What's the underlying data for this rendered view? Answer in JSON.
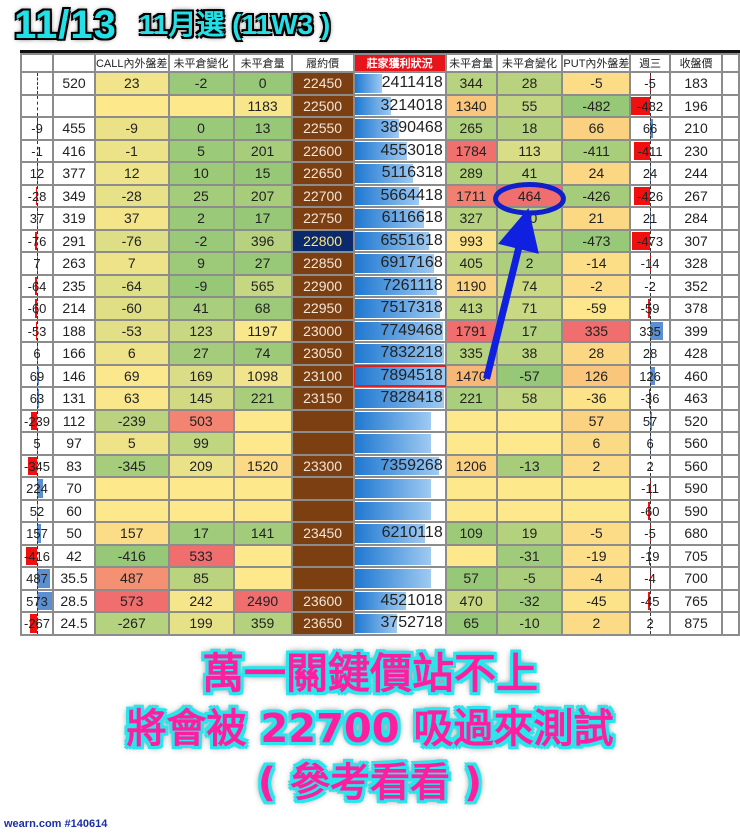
{
  "overlay": {
    "date": "11/13",
    "series": "11月選 (11W3 )",
    "caption_line1": "萬一關鍵價站不上",
    "caption_line2": "將會被 22700 吸過來測試",
    "caption_line3": "( 參考看看 )",
    "watermark": "wearn.com #140614",
    "ellipse_color": "#1020c8",
    "arrow_color": "#1020e0",
    "annotated_cell": "464"
  },
  "table": {
    "headers": [
      "",
      "",
      "CALL內外盤差",
      "未平倉變化",
      "未平倉量",
      "履約價",
      "莊家獲利狀況",
      "未平倉量",
      "未平倉變化",
      "PUT內外盤差",
      "週三",
      "收盤價"
    ],
    "atm_strike": "22800",
    "highlight_strike": "23100",
    "colors": {
      "strike": "#7b3f12",
      "atm": "#0b2a6b",
      "negative_bar": "#f01010",
      "positive_bar": "#5b8fd0",
      "bank_bar": "#1f78d1"
    },
    "rows": [
      [
        "",
        "520",
        "23",
        "-2",
        "0",
        "22450",
        "2411418",
        "344",
        "28",
        "-5",
        "-5",
        "183"
      ],
      [
        "",
        "",
        "",
        "",
        "1183",
        "22500",
        "3214018",
        "1340",
        "55",
        "-482",
        "-482",
        "196"
      ],
      [
        "-9",
        "455",
        "-9",
        "0",
        "13",
        "22550",
        "3890468",
        "265",
        "18",
        "66",
        "66",
        "210"
      ],
      [
        "-1",
        "416",
        "-1",
        "5",
        "201",
        "22600",
        "4553018",
        "1784",
        "113",
        "-411",
        "-411",
        "230"
      ],
      [
        "12",
        "377",
        "12",
        "10",
        "15",
        "22650",
        "5116318",
        "289",
        "41",
        "24",
        "24",
        "244"
      ],
      [
        "-28",
        "349",
        "-28",
        "25",
        "207",
        "22700",
        "5664418",
        "1711",
        "464",
        "-426",
        "-426",
        "267"
      ],
      [
        "37",
        "319",
        "37",
        "2",
        "17",
        "22750",
        "6116618",
        "327",
        "30",
        "21",
        "21",
        "284"
      ],
      [
        "-76",
        "291",
        "-76",
        "-2",
        "396",
        "22800",
        "6551618",
        "993",
        "5",
        "-473",
        "-473",
        "307"
      ],
      [
        "7",
        "263",
        "7",
        "9",
        "27",
        "22850",
        "6917168",
        "405",
        "2",
        "-14",
        "-14",
        "328"
      ],
      [
        "-64",
        "235",
        "-64",
        "-9",
        "565",
        "22900",
        "7261118",
        "1190",
        "74",
        "-2",
        "-2",
        "352"
      ],
      [
        "-60",
        "214",
        "-60",
        "41",
        "68",
        "22950",
        "7517318",
        "413",
        "71",
        "-59",
        "-59",
        "378"
      ],
      [
        "-53",
        "188",
        "-53",
        "123",
        "1197",
        "23000",
        "7749468",
        "1791",
        "17",
        "335",
        "335",
        "399"
      ],
      [
        "6",
        "166",
        "6",
        "27",
        "74",
        "23050",
        "7832218",
        "335",
        "38",
        "28",
        "28",
        "428"
      ],
      [
        "69",
        "146",
        "69",
        "169",
        "1098",
        "23100",
        "7894518",
        "1470",
        "-57",
        "126",
        "126",
        "460"
      ],
      [
        "63",
        "131",
        "63",
        "145",
        "221",
        "23150",
        "7828418",
        "221",
        "58",
        "-36",
        "-36",
        "463"
      ],
      [
        "-239",
        "112",
        "-239",
        "503",
        "",
        "",
        "",
        "",
        "",
        "57",
        "57",
        "520"
      ],
      [
        "5",
        "97",
        "5",
        "99",
        "",
        "",
        "",
        "",
        "",
        "6",
        "6",
        "560"
      ],
      [
        "-345",
        "83",
        "-345",
        "209",
        "1520",
        "23300",
        "7359268",
        "1206",
        "-13",
        "2",
        "2",
        "560"
      ],
      [
        "224",
        "70",
        "",
        "",
        "",
        "",
        "",
        "",
        "",
        "",
        "-11",
        "590"
      ],
      [
        "52",
        "60",
        "",
        "",
        "",
        "",
        "",
        "",
        "",
        "",
        "-60",
        "590"
      ],
      [
        "157",
        "50",
        "157",
        "17",
        "141",
        "23450",
        "6210118",
        "109",
        "19",
        "-5",
        "-5",
        "680"
      ],
      [
        "-416",
        "42",
        "-416",
        "533",
        "",
        "",
        "",
        "",
        "-31",
        "-19",
        "-19",
        "705"
      ],
      [
        "487",
        "35.5",
        "487",
        "85",
        "",
        "",
        "",
        "57",
        "-5",
        "-4",
        "-4",
        "700"
      ],
      [
        "573",
        "28.5",
        "573",
        "242",
        "2490",
        "23600",
        "4521018",
        "470",
        "-32",
        "-45",
        "-45",
        "765"
      ],
      [
        "-267",
        "24.5",
        "-267",
        "199",
        "359",
        "23650",
        "3752718",
        "65",
        "-10",
        "2",
        "2",
        "875"
      ]
    ]
  }
}
